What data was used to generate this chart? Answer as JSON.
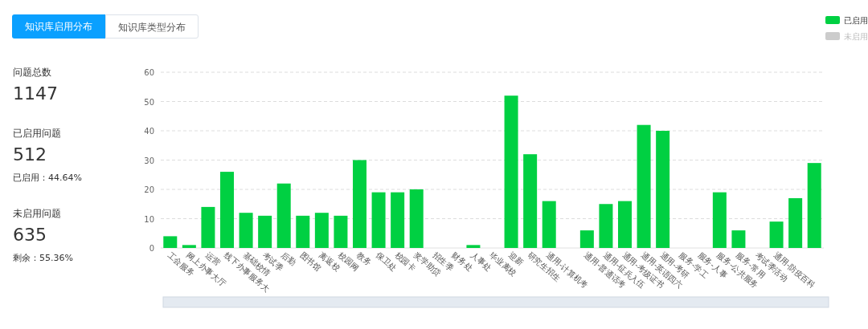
{
  "chart_data": [
    {
      "type": "other",
      "annotations": [
        "知识库启用分布",
        "知识库类型分布",
        "问题总数",
        "1147",
        "已启用问题",
        "512",
        "已启用：44.64%",
        "未启用问题",
        "635",
        "剩余：55.36%"
      ]
    },
    {
      "type": "bar",
      "categories": [
        "工会服务",
        "网上办事大厅",
        "运营",
        "线下办事服务大",
        "基础校情",
        "考试季",
        "后勤",
        "图书馆",
        "离返校",
        "校园网",
        "教务",
        "保卫处",
        "校园卡",
        "奖学助贷",
        "招生季",
        "财务处",
        "人事处",
        "毕业离校",
        "迎新",
        "研究生招生",
        "通用-计算机考",
        null,
        "通用-普通话考",
        "通用-征兵入伍",
        "通用-考级证书",
        "通用-英语四六",
        "通用-考研",
        "服务-学工",
        "服务-人事",
        "服务-公共服务",
        "服务-常用",
        "考试季活动",
        "通用-防疫百科",
        null,
        null
      ],
      "series": [
        {
          "name": "已启用",
          "color": "#00d042",
          "values": [
            4,
            1,
            14,
            26,
            12,
            11,
            22,
            11,
            12,
            11,
            30,
            19,
            19,
            20,
            0,
            0,
            1,
            0,
            52,
            32,
            16,
            0,
            6,
            15,
            16,
            42,
            40,
            0,
            0,
            19,
            6,
            0,
            9,
            17,
            29
          ]
        },
        {
          "name": "未启用",
          "color": "#cccccc",
          "values": [
            null,
            null,
            null,
            null,
            null,
            null,
            null,
            null,
            null,
            null,
            null,
            null,
            null,
            null,
            null,
            null,
            null,
            null,
            null,
            null,
            null,
            null,
            null,
            null,
            null,
            null,
            null,
            null,
            null,
            null,
            null,
            null,
            null,
            null,
            null
          ]
        }
      ],
      "ylim": [
        0,
        60
      ],
      "yticks": [
        0,
        10,
        20,
        30,
        40,
        50,
        60
      ],
      "grid": "y",
      "legend": "top right"
    }
  ]
}
